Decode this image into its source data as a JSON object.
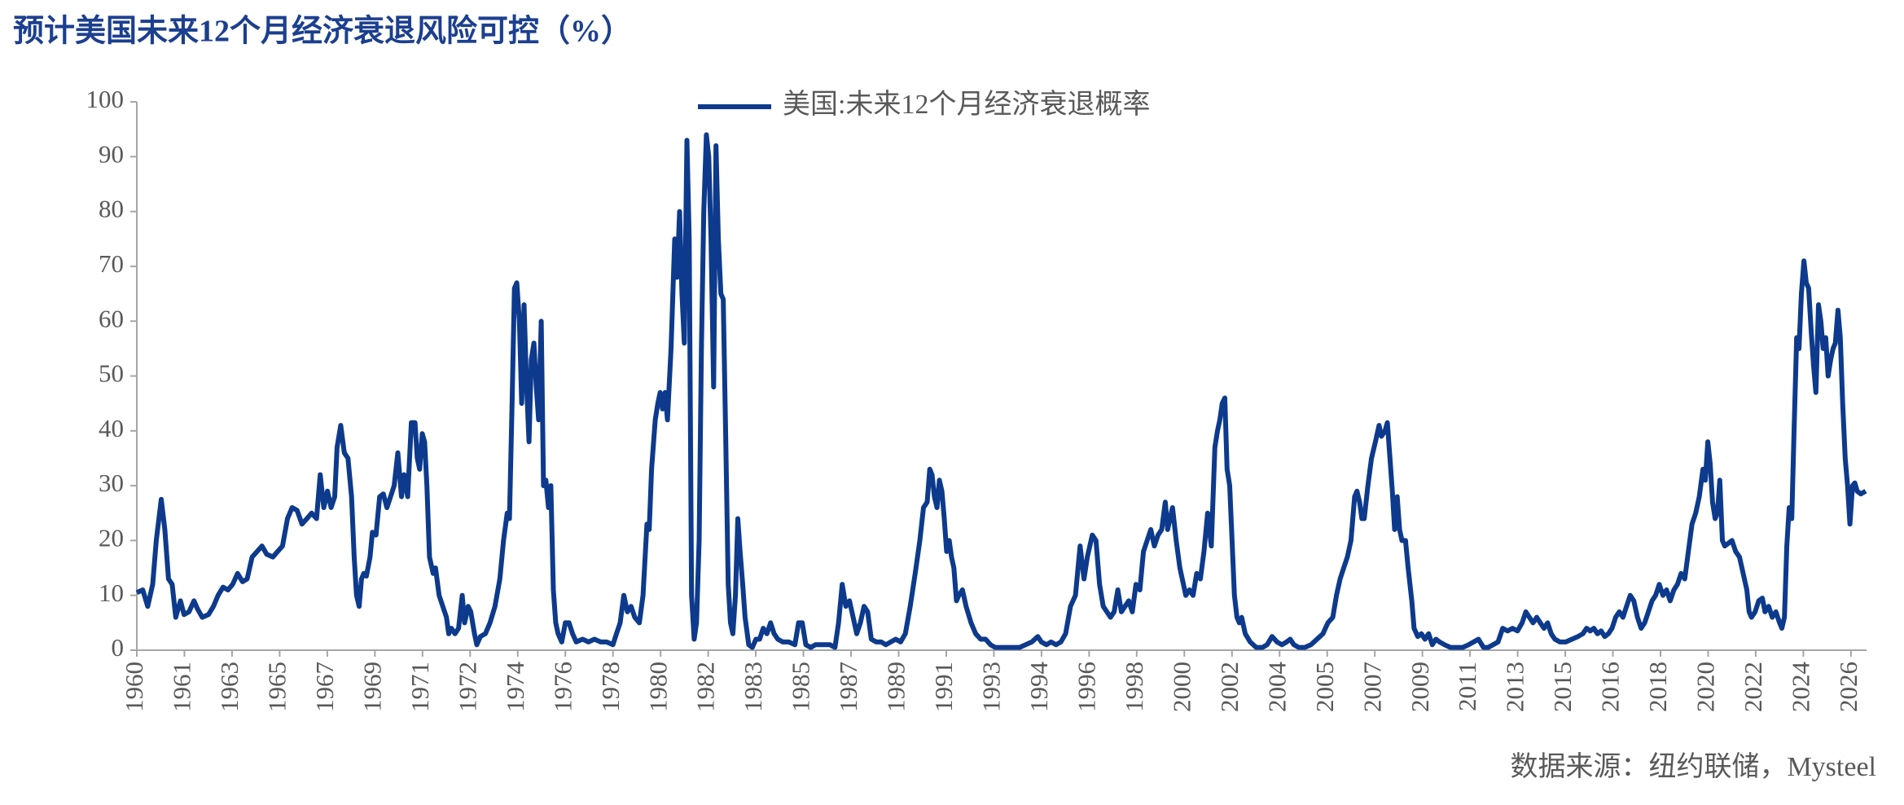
{
  "chart_data": {
    "type": "line",
    "title": "预计美国未来12个月经济衰退风险可控（%）",
    "source": "数据来源：纽约联储，Mysteel",
    "legend": "top",
    "ylim": [
      0,
      100
    ],
    "yticks": [
      0,
      10,
      20,
      30,
      40,
      50,
      60,
      70,
      80,
      90,
      100
    ],
    "xlim": [
      1960,
      2026.6
    ],
    "xticks": [
      1960,
      {
        "value": 1961.833,
        "label": "1961"
      },
      {
        "value": 1963.667,
        "label": "1963"
      },
      {
        "value": 1965.5,
        "label": "1965"
      },
      {
        "value": 1967.333,
        "label": "1967"
      },
      {
        "value": 1969.167,
        "label": "1969"
      },
      1971,
      {
        "value": 1972.833,
        "label": "1972"
      },
      {
        "value": 1974.667,
        "label": "1974"
      },
      {
        "value": 1976.5,
        "label": "1976"
      },
      {
        "value": 1978.333,
        "label": "1978"
      },
      {
        "value": 1980.167,
        "label": "1980"
      },
      1982,
      {
        "value": 1983.833,
        "label": "1983"
      },
      {
        "value": 1985.667,
        "label": "1985"
      },
      {
        "value": 1987.5,
        "label": "1987"
      },
      {
        "value": 1989.333,
        "label": "1989"
      },
      {
        "value": 1991.167,
        "label": "1991"
      },
      1993,
      {
        "value": 1994.833,
        "label": "1994"
      },
      {
        "value": 1996.667,
        "label": "1996"
      },
      {
        "value": 1998.5,
        "label": "1998"
      },
      {
        "value": 2000.333,
        "label": "2000"
      },
      {
        "value": 2002.167,
        "label": "2002"
      },
      2004,
      {
        "value": 2005.833,
        "label": "2005"
      },
      {
        "value": 2007.667,
        "label": "2007"
      },
      {
        "value": 2009.5,
        "label": "2009"
      },
      {
        "value": 2011.333,
        "label": "2011"
      },
      {
        "value": 2013.167,
        "label": "2013"
      },
      2015,
      {
        "value": 2016.833,
        "label": "2016"
      },
      {
        "value": 2018.667,
        "label": "2018"
      },
      {
        "value": 2020.5,
        "label": "2020"
      },
      {
        "value": 2022.333,
        "label": "2022"
      },
      {
        "value": 2024.167,
        "label": "2024"
      },
      2026
    ],
    "x": [
      1960.0,
      1960.23,
      1960.42,
      1960.61,
      1960.75,
      1960.94,
      1961.08,
      1961.22,
      1961.36,
      1961.5,
      1961.68,
      1961.82,
      1962.01,
      1962.2,
      1962.34,
      1962.52,
      1962.76,
      1962.95,
      1963.13,
      1963.32,
      1963.51,
      1963.69,
      1963.88,
      1964.07,
      1964.25,
      1964.44,
      1964.63,
      1964.82,
      1965.0,
      1965.24,
      1965.42,
      1965.61,
      1965.8,
      1965.98,
      1966.17,
      1966.36,
      1966.55,
      1966.73,
      1966.92,
      1967.06,
      1967.2,
      1967.34,
      1967.48,
      1967.62,
      1967.71,
      1967.85,
      1967.99,
      1968.13,
      1968.27,
      1968.37,
      1968.46,
      1968.56,
      1968.65,
      1968.74,
      1968.84,
      1968.98,
      1969.07,
      1969.21,
      1969.35,
      1969.49,
      1969.63,
      1969.77,
      1969.91,
      1970.05,
      1970.19,
      1970.29,
      1970.43,
      1970.57,
      1970.71,
      1970.8,
      1970.89,
      1970.99,
      1971.08,
      1971.17,
      1971.27,
      1971.41,
      1971.5,
      1971.64,
      1971.78,
      1971.92,
      1972.01,
      1972.11,
      1972.25,
      1972.39,
      1972.53,
      1972.62,
      1972.76,
      1972.86,
      1973.0,
      1973.09,
      1973.23,
      1973.42,
      1973.6,
      1973.79,
      1973.98,
      1974.12,
      1974.26,
      1974.35,
      1974.45,
      1974.54,
      1974.63,
      1974.73,
      1974.82,
      1974.91,
      1975.01,
      1975.1,
      1975.19,
      1975.29,
      1975.38,
      1975.47,
      1975.57,
      1975.66,
      1975.75,
      1975.85,
      1975.94,
      1976.04,
      1976.13,
      1976.22,
      1976.36,
      1976.5,
      1976.64,
      1976.78,
      1976.92,
      1977.16,
      1977.39,
      1977.62,
      1977.86,
      1978.09,
      1978.33,
      1978.47,
      1978.61,
      1978.75,
      1978.89,
      1979.03,
      1979.17,
      1979.35,
      1979.49,
      1979.64,
      1979.73,
      1979.82,
      1979.96,
      1980.06,
      1980.15,
      1980.24,
      1980.34,
      1980.43,
      1980.57,
      1980.71,
      1980.8,
      1980.9,
      1980.99,
      1981.08,
      1981.18,
      1981.27,
      1981.36,
      1981.46,
      1981.55,
      1981.65,
      1981.74,
      1981.83,
      1981.93,
      1982.02,
      1982.11,
      1982.21,
      1982.3,
      1982.39,
      1982.49,
      1982.58,
      1982.67,
      1982.77,
      1982.86,
      1982.95,
      1983.05,
      1983.14,
      1983.23,
      1983.33,
      1983.42,
      1983.56,
      1983.7,
      1983.84,
      1983.98,
      1984.12,
      1984.26,
      1984.4,
      1984.54,
      1984.68,
      1984.87,
      1985.1,
      1985.34,
      1985.48,
      1985.62,
      1985.76,
      1985.95,
      1986.13,
      1986.41,
      1986.69,
      1986.88,
      1987.02,
      1987.16,
      1987.3,
      1987.44,
      1987.58,
      1987.72,
      1987.86,
      1988.0,
      1988.14,
      1988.28,
      1988.47,
      1988.66,
      1988.84,
      1989.03,
      1989.22,
      1989.41,
      1989.59,
      1989.78,
      1989.97,
      1990.15,
      1990.29,
      1990.43,
      1990.53,
      1990.62,
      1990.71,
      1990.81,
      1990.9,
      1991.0,
      1991.09,
      1991.18,
      1991.28,
      1991.37,
      1991.46,
      1991.56,
      1991.65,
      1991.79,
      1991.93,
      1992.12,
      1992.3,
      1992.49,
      1992.68,
      1992.87,
      1993.05,
      1993.29,
      1993.52,
      1993.75,
      1993.99,
      1994.22,
      1994.46,
      1994.69,
      1994.83,
      1995.02,
      1995.2,
      1995.39,
      1995.58,
      1995.76,
      1995.95,
      1996.14,
      1996.32,
      1996.47,
      1996.6,
      1996.79,
      1996.93,
      1997.07,
      1997.21,
      1997.35,
      1997.49,
      1997.63,
      1997.77,
      1997.91,
      1998.05,
      1998.19,
      1998.33,
      1998.47,
      1998.62,
      1998.76,
      1998.9,
      1999.04,
      1999.18,
      1999.32,
      1999.46,
      1999.6,
      1999.69,
      1999.78,
      1999.88,
      2000.02,
      2000.16,
      2000.3,
      2000.39,
      2000.53,
      2000.67,
      2000.81,
      2000.95,
      2001.09,
      2001.23,
      2001.37,
      2001.51,
      2001.61,
      2001.7,
      2001.79,
      2001.89,
      2001.98,
      2002.08,
      2002.17,
      2002.26,
      2002.36,
      2002.45,
      2002.54,
      2002.68,
      2002.87,
      2003.1,
      2003.34,
      2003.52,
      2003.71,
      2003.9,
      2004.09,
      2004.27,
      2004.41,
      2004.55,
      2004.74,
      2004.97,
      2005.21,
      2005.44,
      2005.67,
      2005.86,
      2006.05,
      2006.19,
      2006.33,
      2006.47,
      2006.61,
      2006.75,
      2006.89,
      2006.98,
      2007.08,
      2007.17,
      2007.26,
      2007.4,
      2007.54,
      2007.69,
      2007.83,
      2007.92,
      2008.06,
      2008.15,
      2008.25,
      2008.34,
      2008.43,
      2008.53,
      2008.62,
      2008.71,
      2008.85,
      2008.95,
      2009.09,
      2009.18,
      2009.32,
      2009.46,
      2009.6,
      2009.74,
      2009.88,
      2010.02,
      2010.16,
      2010.35,
      2010.58,
      2010.82,
      2011.05,
      2011.28,
      2011.47,
      2011.66,
      2011.85,
      2012.03,
      2012.22,
      2012.41,
      2012.59,
      2012.78,
      2012.97,
      2013.16,
      2013.34,
      2013.48,
      2013.62,
      2013.76,
      2013.9,
      2014.04,
      2014.18,
      2014.32,
      2014.46,
      2014.6,
      2014.79,
      2015.02,
      2015.26,
      2015.49,
      2015.68,
      2015.82,
      2015.96,
      2016.1,
      2016.24,
      2016.38,
      2016.52,
      2016.66,
      2016.8,
      2016.94,
      2017.08,
      2017.22,
      2017.36,
      2017.5,
      2017.64,
      2017.78,
      2017.92,
      2018.06,
      2018.2,
      2018.34,
      2018.48,
      2018.62,
      2018.76,
      2018.9,
      2019.04,
      2019.18,
      2019.32,
      2019.46,
      2019.6,
      2019.74,
      2019.88,
      2020.02,
      2020.16,
      2020.3,
      2020.39,
      2020.49,
      2020.58,
      2020.67,
      2020.77,
      2020.86,
      2020.95,
      2021.05,
      2021.14,
      2021.28,
      2021.42,
      2021.56,
      2021.71,
      2021.85,
      2021.99,
      2022.08,
      2022.17,
      2022.31,
      2022.45,
      2022.59,
      2022.69,
      2022.83,
      2022.97,
      2023.11,
      2023.25,
      2023.34,
      2023.44,
      2023.53,
      2023.62,
      2023.72,
      2023.81,
      2023.91,
      2024.0,
      2024.09,
      2024.19,
      2024.28,
      2024.37,
      2024.47,
      2024.56,
      2024.65,
      2024.75,
      2024.84,
      2024.93,
      2025.03,
      2025.12,
      2025.22,
      2025.31,
      2025.4,
      2025.5,
      2025.59,
      2025.68,
      2025.78,
      2025.87,
      2025.96,
      2026.06,
      2026.15,
      2026.24,
      2026.38,
      2026.57
    ],
    "series": [
      {
        "name": "美国:未来12个月经济衰退概率",
        "color": "#0d3a8c",
        "values": [
          10.5,
          11,
          8,
          12,
          20,
          27.5,
          22,
          13,
          12,
          6,
          9,
          6.5,
          7,
          9,
          7.5,
          6,
          6.5,
          8,
          10,
          11.5,
          11,
          12,
          14,
          12.5,
          13,
          17,
          18,
          19,
          17.5,
          17,
          18,
          19,
          24,
          26,
          25.5,
          23,
          24,
          25,
          24,
          32,
          26,
          29,
          26,
          28,
          37,
          41,
          36,
          35,
          28,
          17,
          10,
          8,
          13,
          14,
          13.5,
          17,
          21.5,
          21,
          28,
          28.5,
          26,
          28,
          30,
          36,
          28,
          32,
          28,
          41.5,
          41.5,
          35,
          33,
          39.5,
          38,
          30,
          17,
          14,
          15,
          10,
          8,
          6,
          3,
          4,
          3,
          4,
          10,
          5,
          8,
          7,
          3,
          1,
          2.5,
          3,
          5,
          8,
          13,
          20,
          25,
          24,
          45,
          66,
          67,
          60,
          45,
          63,
          48,
          38,
          53,
          56,
          48,
          42,
          60,
          30,
          31,
          26,
          30,
          11,
          5,
          3,
          1.5,
          5,
          5,
          3,
          1.5,
          2,
          1.5,
          2,
          1.5,
          1.5,
          1,
          3,
          5,
          10,
          7,
          8,
          6,
          5,
          10,
          23,
          22,
          33,
          42,
          45,
          47,
          44,
          47,
          42,
          55,
          75,
          68,
          80,
          65,
          56,
          93,
          75,
          10,
          2,
          5,
          20,
          55,
          80,
          94,
          90,
          75,
          48,
          92,
          75,
          65,
          64,
          40,
          12,
          5,
          3,
          10,
          24,
          18,
          12,
          6,
          1,
          0.5,
          2,
          2,
          4,
          3,
          5,
          3,
          2,
          1.5,
          1.5,
          1,
          5,
          5,
          1,
          0.5,
          1,
          1,
          1,
          0.5,
          5,
          12,
          8,
          9,
          6,
          3,
          5,
          8,
          7,
          2,
          1.5,
          1.5,
          1,
          1.5,
          2,
          1.5,
          3,
          8,
          14,
          20,
          26,
          27,
          33,
          32,
          28,
          26,
          31,
          29,
          24,
          18,
          20,
          17,
          15,
          9,
          10,
          11,
          8,
          5,
          3,
          2,
          2,
          1,
          0.5,
          0.5,
          0.5,
          0.5,
          0.5,
          1,
          1.5,
          2.5,
          1.5,
          1,
          1.5,
          1,
          1.5,
          3,
          8,
          10,
          19,
          13,
          17,
          21,
          20,
          12,
          8,
          7,
          6,
          7,
          11,
          7,
          8,
          9,
          7,
          12,
          11,
          18,
          20,
          22,
          19,
          21,
          22,
          27,
          22,
          24,
          26,
          20,
          15,
          12,
          10,
          11,
          10,
          14,
          13,
          18,
          25,
          19,
          37,
          40,
          42,
          45,
          46,
          33,
          30,
          20,
          10,
          6,
          5,
          6,
          3,
          1.5,
          0.5,
          0.5,
          1,
          2.5,
          1.5,
          1,
          1.5,
          2,
          1,
          0.5,
          0.5,
          1,
          2,
          3,
          5,
          6,
          10,
          13,
          15,
          17,
          20,
          28,
          29,
          27,
          24,
          24,
          30,
          35,
          38,
          41,
          39,
          40,
          41.5,
          35,
          29,
          22,
          28,
          22,
          20,
          20,
          15,
          9,
          4,
          2.5,
          3,
          2,
          3,
          1,
          2,
          1.5,
          1,
          0.5,
          0.5,
          0.5,
          1,
          1.5,
          2,
          0.5,
          0.5,
          1,
          1.5,
          4,
          3.5,
          4,
          3.5,
          5,
          7,
          6,
          5,
          6,
          5,
          4,
          5,
          3,
          2,
          1.5,
          1.5,
          2,
          2.5,
          3,
          4,
          3.5,
          4,
          3,
          3.5,
          2.5,
          3,
          4,
          6,
          7,
          6,
          8,
          10,
          9,
          6,
          4,
          5,
          7,
          9,
          10,
          12,
          10,
          11,
          9,
          11,
          12,
          14,
          13,
          18,
          23,
          25,
          28,
          33,
          31,
          38,
          34,
          27,
          24,
          25,
          31,
          20,
          19,
          19.5,
          20,
          18,
          17,
          14,
          11,
          7,
          6,
          7,
          9,
          9.5,
          7,
          8,
          6,
          7,
          5,
          4,
          6,
          19,
          26,
          24,
          40,
          57,
          55,
          65,
          71,
          67,
          66,
          58,
          52,
          47,
          63,
          60,
          55,
          57,
          50,
          53,
          55,
          56,
          62,
          57,
          45,
          35,
          30,
          23,
          30,
          30.5,
          29,
          28.5,
          29
        ]
      }
    ]
  }
}
